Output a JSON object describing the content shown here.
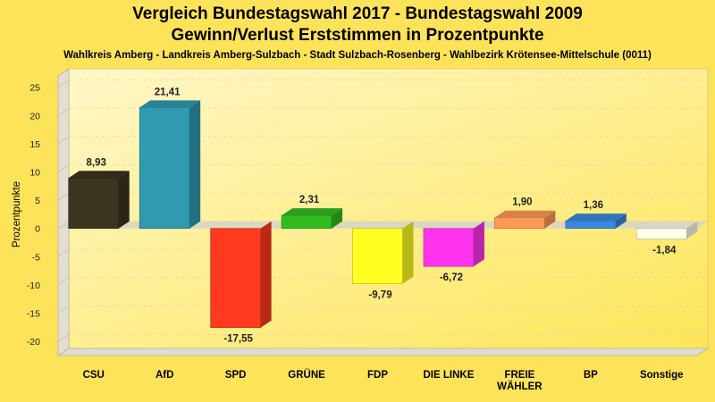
{
  "chart_data": {
    "type": "bar",
    "title": "Vergleich Bundestagswahl 2017 - Bundestagswahl 2009",
    "title_line2": "Gewinn/Verlust Erststimmen in Prozentpunkte",
    "subtitle": "Wahlkreis Amberg - Landkreis Amberg-Sulzbach - Stadt Sulzbach-Rosenberg - Wahlbezirk Krötensee-Mittelschule (0011)",
    "ylabel": "Prozentpunkte",
    "xlabel": "",
    "ylim": [
      -22.5,
      27
    ],
    "yticks": [
      25,
      20,
      15,
      10,
      5,
      0,
      -5,
      -10,
      -15,
      -20
    ],
    "grid": true,
    "categories": [
      "CSU",
      "AfD",
      "SPD",
      "GRÜNE",
      "FDP",
      "DIE LINKE",
      "FREIE WÄHLER",
      "BP",
      "Sonstige"
    ],
    "category_lines": [
      [
        "CSU"
      ],
      [
        "AfD"
      ],
      [
        "SPD"
      ],
      [
        "GRÜNE"
      ],
      [
        "FDP"
      ],
      [
        "DIE LINKE"
      ],
      [
        "FREIE",
        "WÄHLER"
      ],
      [
        "BP"
      ],
      [
        "Sonstige"
      ]
    ],
    "values": [
      8.93,
      21.41,
      -17.55,
      2.31,
      -9.79,
      -6.72,
      1.9,
      1.36,
      -1.84
    ],
    "value_labels": [
      "8,93",
      "21,41",
      "-17,55",
      "2,31",
      "-9,79",
      "-6,72",
      "1,90",
      "1,36",
      "-1,84"
    ],
    "colors": [
      "#3a3420",
      "#2f9ab0",
      "#ff3a1e",
      "#33bb22",
      "#ffff22",
      "#ff33ee",
      "#ff9955",
      "#3a88dd",
      "#ffffee"
    ]
  }
}
